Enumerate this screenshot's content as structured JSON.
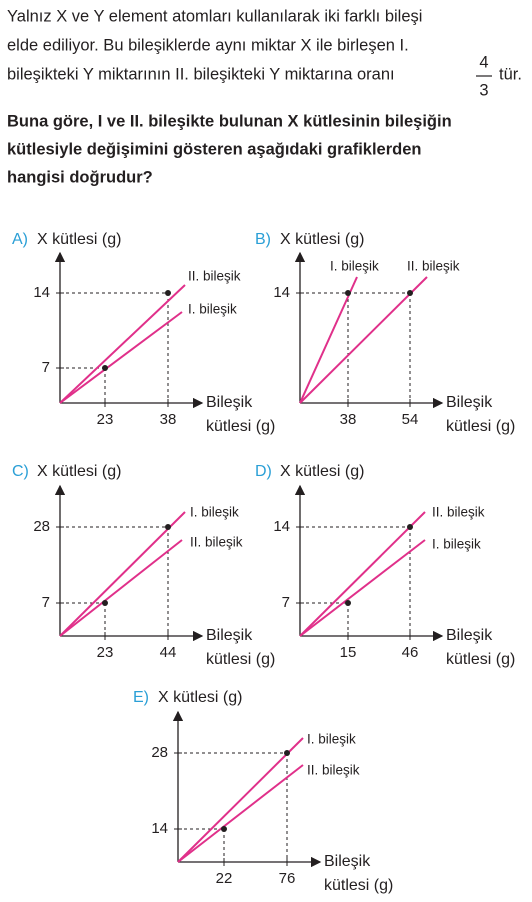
{
  "question": {
    "lines": [
      "Yalnız X ve Y element atomları kullanılarak iki farklı bileşi",
      "elde ediliyor. Bu bileşiklerde aynı miktar X ile birleşen I.",
      "bileşikteki Y miktarının II. bileşikteki Y miktarına oranı"
    ],
    "fraction": {
      "numerator": "4",
      "denominator": "3"
    },
    "after_fraction": "tür.",
    "bold_lines": [
      "Buna göre, I ve II. bileşikte bulunan X kütlesinin bileşiğin",
      "kütlesiyle değişimini gösteren aşağıdaki grafiklerden",
      "hangisi doğrudur?"
    ]
  },
  "options": [
    {
      "letter": "A)",
      "y_axis_label": "X kütlesi (g)",
      "x_axis_label": [
        "Bileşik",
        "kütlesi (g)"
      ],
      "x_ticks": [
        23,
        38
      ],
      "y_ticks": [
        7,
        14
      ],
      "line_labels": [
        "II. bileşik",
        "I. bileşik"
      ]
    },
    {
      "letter": "B)",
      "y_axis_label": "X kütlesi (g)",
      "x_axis_label": [
        "Bileşik",
        "kütlesi (g)"
      ],
      "x_ticks": [
        38,
        54
      ],
      "y_ticks": [
        14
      ],
      "line_labels": [
        "I. bileşik",
        "II. bileşik"
      ]
    },
    {
      "letter": "C)",
      "y_axis_label": "X kütlesi (g)",
      "x_axis_label": [
        "Bileşik",
        "kütlesi (g)"
      ],
      "x_ticks": [
        23,
        44
      ],
      "y_ticks": [
        7,
        28
      ],
      "line_labels": [
        "I. bileşik",
        "II. bileşik"
      ]
    },
    {
      "letter": "D)",
      "y_axis_label": "X kütlesi (g)",
      "x_axis_label": [
        "Bileşik",
        "kütlesi (g)"
      ],
      "x_ticks": [
        15,
        46
      ],
      "y_ticks": [
        7,
        14
      ],
      "line_labels": [
        "II. bileşik",
        "I. bileşik"
      ]
    },
    {
      "letter": "E)",
      "y_axis_label": "X kütlesi (g)",
      "x_axis_label": [
        "Bileşik",
        "kütlesi (g)"
      ],
      "x_ticks": [
        22,
        76
      ],
      "y_ticks": [
        14,
        28
      ],
      "line_labels": [
        "I. bileşik",
        "II. bileşik"
      ]
    }
  ]
}
